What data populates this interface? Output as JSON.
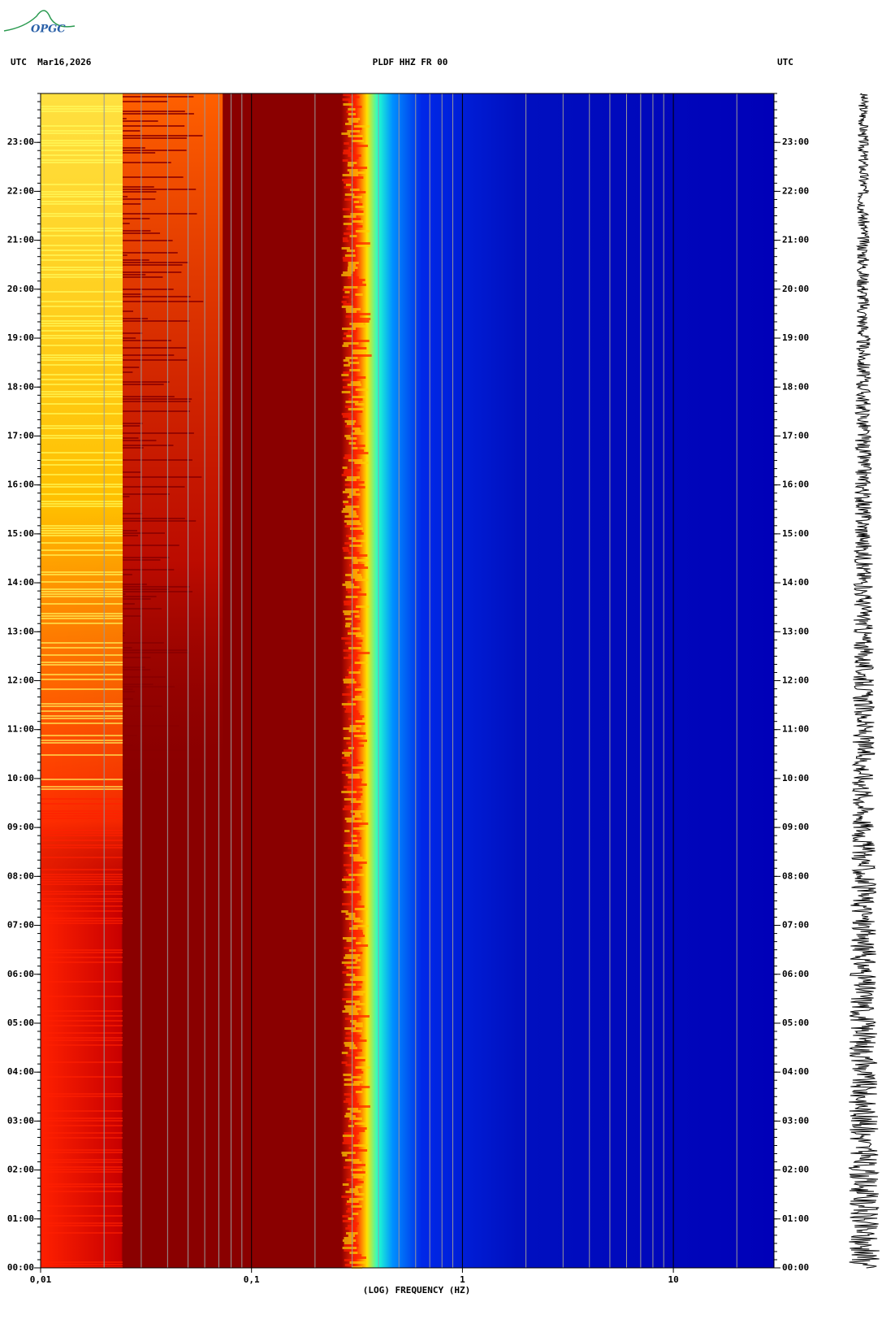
{
  "logo": "OPGC",
  "chart_data": {
    "type": "spectrogram",
    "title_left": "UTC  Mar16,2026",
    "title": "PLDF HHZ FR 00",
    "title_right": "UTC",
    "x_label": "(LOG) FREQUENCY (HZ)",
    "xlim": [
      0.01,
      30
    ],
    "x_log": true,
    "xticks": [
      {
        "value": 0.01,
        "label": "0,01"
      },
      {
        "value": 0.1,
        "label": "0,1"
      },
      1,
      10
    ],
    "ylim": [
      0,
      24
    ],
    "yticks": [
      {
        "value": 0,
        "label": "00:00"
      },
      {
        "value": 1,
        "label": "01:00"
      },
      {
        "value": 2,
        "label": "02:00"
      },
      {
        "value": 3,
        "label": "03:00"
      },
      {
        "value": 4,
        "label": "04:00"
      },
      {
        "value": 5,
        "label": "05:00"
      },
      {
        "value": 6,
        "label": "06:00"
      },
      {
        "value": 7,
        "label": "07:00"
      },
      {
        "value": 8,
        "label": "08:00"
      },
      {
        "value": 9,
        "label": "09:00"
      },
      {
        "value": 10,
        "label": "10:00"
      },
      {
        "value": 11,
        "label": "11:00"
      },
      {
        "value": 12,
        "label": "12:00"
      },
      {
        "value": 13,
        "label": "13:00"
      },
      {
        "value": 14,
        "label": "14:00"
      },
      {
        "value": 15,
        "label": "15:00"
      },
      {
        "value": 16,
        "label": "16:00"
      },
      {
        "value": 17,
        "label": "17:00"
      },
      {
        "value": 18,
        "label": "18:00"
      },
      {
        "value": 19,
        "label": "19:00"
      },
      {
        "value": 20,
        "label": "20:00"
      },
      {
        "value": 21,
        "label": "21:00"
      },
      {
        "value": 22,
        "label": "22:00"
      },
      {
        "value": 23,
        "label": "23:00"
      }
    ],
    "grid": true
  }
}
